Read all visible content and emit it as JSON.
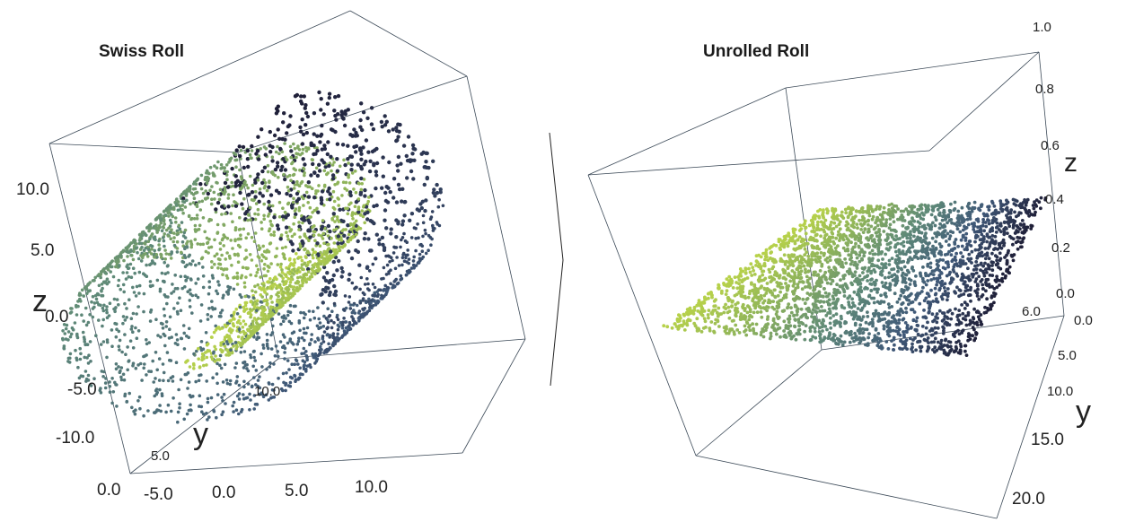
{
  "chart_data": [
    {
      "type": "scatter",
      "projection": "3d",
      "title": "Swiss Roll",
      "xlabel": "",
      "ylabel": "y",
      "zlabel": "z",
      "x_ticks": [
        "-5.0",
        "0.0",
        "5.0",
        "10.0"
      ],
      "y_ticks": [
        "0.0",
        "5.0",
        "10.0"
      ],
      "z_ticks": [
        "10.0",
        "5.0",
        "0.0",
        "-5.0",
        "-10.0"
      ],
      "xlim": [
        -10,
        12
      ],
      "ylim": [
        0,
        20
      ],
      "zlim": [
        -12,
        14
      ],
      "colormap": [
        "#1f1f38",
        "#3f5878",
        "#5f8a78",
        "#8fb45a",
        "#b8d24a"
      ],
      "point_color": "roll parameter t",
      "n_points_approx": 5000,
      "grid": false
    },
    {
      "type": "scatter",
      "projection": "3d",
      "title": "Unrolled Roll",
      "xlabel": "",
      "ylabel": "y",
      "zlabel": "z",
      "x_ticks": [
        "6.0"
      ],
      "y_ticks": [
        "0.0",
        "5.0",
        "10.0",
        "15.0",
        "20.0"
      ],
      "z_ticks": [
        "1.0",
        "0.8",
        "0.6",
        "0.4",
        "0.2",
        "0.0"
      ],
      "ylim": [
        0,
        20
      ],
      "zlim": [
        0,
        1
      ],
      "colormap": [
        "#1f1f38",
        "#3f5878",
        "#5f8a78",
        "#8fb45a",
        "#b8d24a"
      ],
      "point_color": "roll parameter t",
      "n_points_approx": 5000,
      "grid": false
    }
  ]
}
